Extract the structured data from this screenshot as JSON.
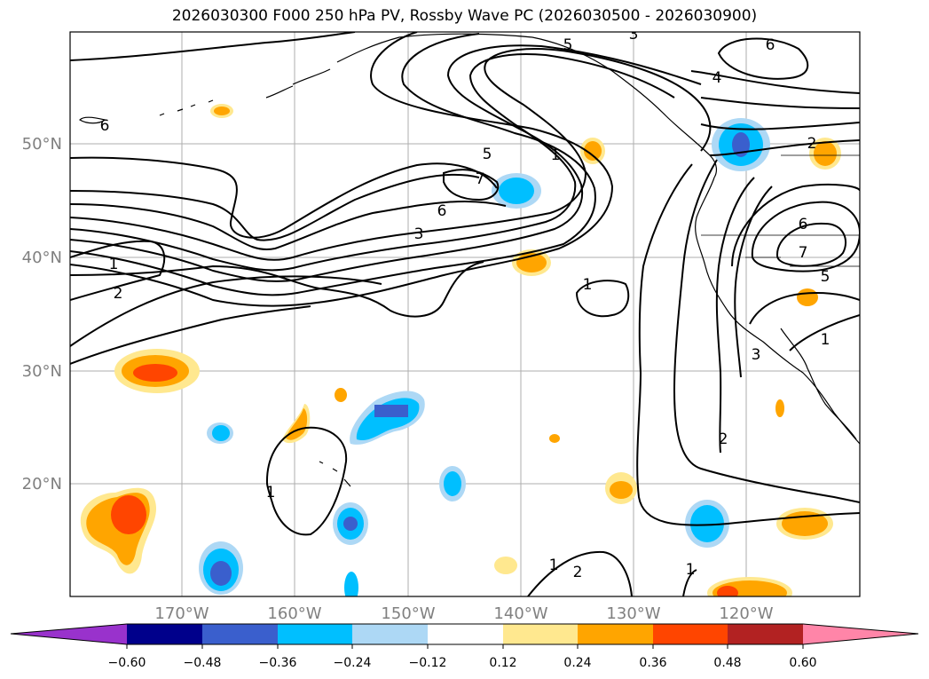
{
  "title": "2026030300 F000 250 hPa PV, Rossby Wave PC (2026030500 - 2026030900)",
  "lat_labels": [
    "50°N",
    "40°N",
    "30°N",
    "20°N"
  ],
  "lon_labels": [
    "170°W",
    "160°W",
    "150°W",
    "140°W",
    "130°W",
    "120°W"
  ],
  "colorbar": {
    "colors": [
      "#9932cc",
      "#00008b",
      "#3a5fcd",
      "#00bfff",
      "#add8f5",
      "#ffffff",
      "#ffe88f",
      "#ffa500",
      "#ff4500",
      "#b22222",
      "#ff85a8"
    ],
    "tick_labels": [
      "−0.60",
      "−0.48",
      "−0.36",
      "−0.24",
      "−0.12",
      "0.12",
      "0.24",
      "0.36",
      "0.48",
      "0.60"
    ]
  },
  "contour_labels": {
    "pv_7a": "7",
    "pv_6a": "6",
    "pv_5a": "5",
    "pv_3a": "3",
    "pv_1a": "1",
    "pv_1b": "1",
    "pv_2a": "2",
    "pv_1c": "1",
    "pv_6b": "6",
    "pv_4a": "4",
    "pv_2b": "2",
    "pv_6c": "6",
    "pv_7b": "7",
    "pv_5b": "5",
    "pv_1d": "1",
    "pv_3b": "3",
    "pv_2c": "2",
    "pv_1e": "1",
    "pv_1f": "1",
    "pv_2d": "2",
    "pv_1g": "1",
    "pv_6d": "6",
    "pv_3c": "3",
    "pv_5c": "5"
  }
}
